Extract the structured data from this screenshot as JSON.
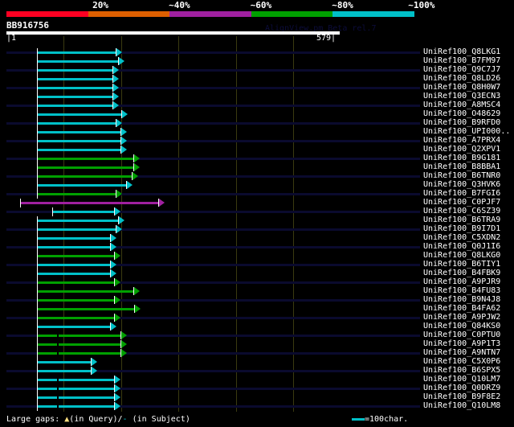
{
  "colors": {
    "red": "#ff0022",
    "orange": "#dd5f00",
    "purple": "#a020a0",
    "green": "#00a000",
    "cyan": "#00c0c8"
  },
  "identity_scale": [
    {
      "label": "20%",
      "color": "#ff0022"
    },
    {
      "label": "~40%",
      "color": "#dd5f00"
    },
    {
      "label": "~60%",
      "color": "#a020a0"
    },
    {
      "label": "~80%",
      "color": "#00a000"
    },
    {
      "label": "~100%",
      "color": "#00c0c8"
    }
  ],
  "query": {
    "name": "BB916756",
    "start_label": "|1",
    "end_label": "579|",
    "length": 579
  },
  "watermark": "AlignView.pm Beta rel.7",
  "hits": [
    {
      "name": "UniRef100_Q8LKG1",
      "start": 51,
      "end": 190,
      "color": "cyan"
    },
    {
      "name": "UniRef100_B7FM97",
      "start": 51,
      "end": 194,
      "color": "cyan"
    },
    {
      "name": "UniRef100_Q9C7J7",
      "start": 51,
      "end": 184,
      "color": "cyan"
    },
    {
      "name": "UniRef100_Q8LD26",
      "start": 51,
      "end": 184,
      "color": "cyan"
    },
    {
      "name": "UniRef100_Q8H0W7",
      "start": 51,
      "end": 184,
      "color": "cyan"
    },
    {
      "name": "UniRef100_Q3ECN3",
      "start": 51,
      "end": 184,
      "color": "cyan"
    },
    {
      "name": "UniRef100_A8MSC4",
      "start": 51,
      "end": 184,
      "color": "cyan"
    },
    {
      "name": "UniRef100_O48629",
      "start": 51,
      "end": 200,
      "color": "cyan"
    },
    {
      "name": "UniRef100_B9RFD0",
      "start": 51,
      "end": 190,
      "color": "cyan"
    },
    {
      "name": "UniRef100_UPI000..",
      "start": 51,
      "end": 198,
      "color": "cyan"
    },
    {
      "name": "UniRef100_A7PRX4",
      "start": 51,
      "end": 198,
      "color": "cyan"
    },
    {
      "name": "UniRef100_Q2XPV1",
      "start": 51,
      "end": 198,
      "color": "cyan"
    },
    {
      "name": "UniRef100_B9G181",
      "start": 51,
      "end": 221,
      "color": "green"
    },
    {
      "name": "UniRef100_B8BBA1",
      "start": 51,
      "end": 221,
      "color": "green"
    },
    {
      "name": "UniRef100_B6TNR0",
      "start": 51,
      "end": 218,
      "color": "green"
    },
    {
      "name": "UniRef100_Q3HVK6",
      "start": 51,
      "end": 208,
      "color": "cyan"
    },
    {
      "name": "UniRef100_B7FGI6",
      "start": 51,
      "end": 190,
      "color": "green"
    },
    {
      "name": "UniRef100_C0PJF7",
      "start": 22,
      "end": 264,
      "color": "purple"
    },
    {
      "name": "UniRef100_C6SZ39",
      "start": 78,
      "end": 187,
      "color": "cyan"
    },
    {
      "name": "UniRef100_B6TRA9",
      "start": 51,
      "end": 194,
      "color": "cyan"
    },
    {
      "name": "UniRef100_B9I7D1",
      "start": 51,
      "end": 190,
      "color": "cyan"
    },
    {
      "name": "UniRef100_C5XDN2",
      "start": 51,
      "end": 180,
      "color": "cyan"
    },
    {
      "name": "UniRef100_Q0J1I6",
      "start": 51,
      "end": 180,
      "color": "cyan"
    },
    {
      "name": "UniRef100_Q8LKG0",
      "start": 51,
      "end": 187,
      "color": "green"
    },
    {
      "name": "UniRef100_B6TIY1",
      "start": 51,
      "end": 180,
      "color": "cyan"
    },
    {
      "name": "UniRef100_B4FBK9",
      "start": 51,
      "end": 180,
      "color": "cyan"
    },
    {
      "name": "UniRef100_A9PJR9",
      "start": 51,
      "end": 187,
      "color": "green"
    },
    {
      "name": "UniRef100_B4FU83",
      "start": 51,
      "end": 221,
      "color": "green"
    },
    {
      "name": "UniRef100_B9N4J8",
      "start": 51,
      "end": 187,
      "color": "green"
    },
    {
      "name": "UniRef100_B4FA62",
      "start": 51,
      "end": 222,
      "color": "green"
    },
    {
      "name": "UniRef100_A9PJW2",
      "start": 51,
      "end": 187,
      "color": "green"
    },
    {
      "name": "UniRef100_Q84KS0",
      "start": 51,
      "end": 180,
      "color": "cyan"
    },
    {
      "name": "UniRef100_C0PTU0",
      "start": 51,
      "end": 198,
      "color": "green",
      "gap": [
        86,
        89
      ]
    },
    {
      "name": "UniRef100_A9P1T3",
      "start": 51,
      "end": 198,
      "color": "green",
      "gap": [
        86,
        89
      ]
    },
    {
      "name": "UniRef100_A9NTN7",
      "start": 51,
      "end": 198,
      "color": "green",
      "gap": [
        86,
        89
      ]
    },
    {
      "name": "UniRef100_C5X0P6",
      "start": 51,
      "end": 147,
      "color": "cyan"
    },
    {
      "name": "UniRef100_B6SPX5",
      "start": 51,
      "end": 147,
      "color": "cyan"
    },
    {
      "name": "UniRef100_Q10LM7",
      "start": 51,
      "end": 187,
      "color": "cyan",
      "gap": [
        86,
        89
      ]
    },
    {
      "name": "UniRef100_Q0DRZ9",
      "start": 51,
      "end": 187,
      "color": "cyan",
      "gap": [
        86,
        89
      ]
    },
    {
      "name": "UniRef100_B9F8E2",
      "start": 51,
      "end": 187,
      "color": "cyan",
      "gap": [
        86,
        89
      ]
    },
    {
      "name": "UniRef100_Q10LM8",
      "start": 51,
      "end": 187,
      "color": "cyan",
      "gap": [
        86,
        89
      ]
    }
  ],
  "footer": {
    "gaps_label": "Large gaps:",
    "query_gap": "(in Query)/",
    "subject_gap": "(in Subject)",
    "scale_label": "=100char."
  }
}
